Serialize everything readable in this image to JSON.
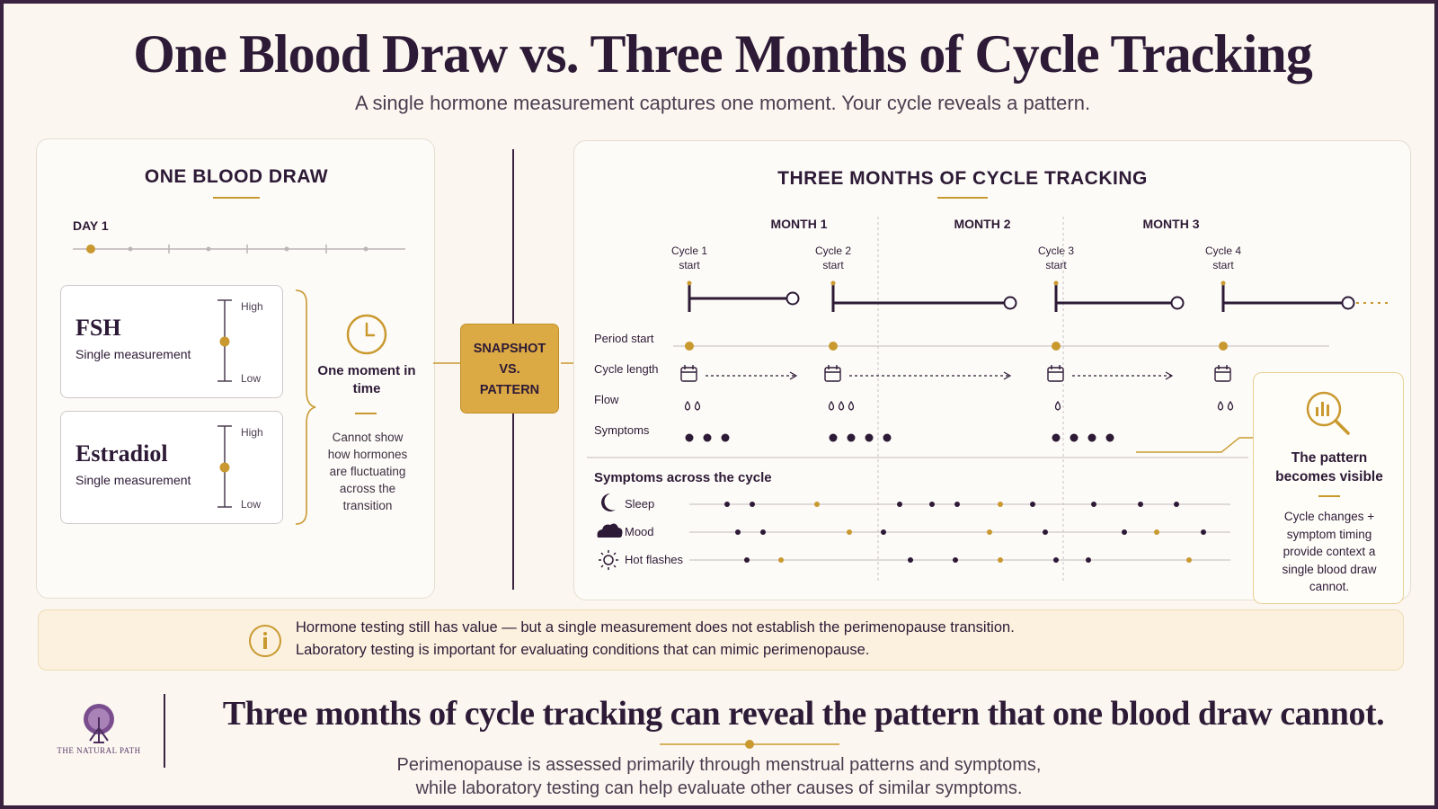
{
  "title": "One Blood Draw vs. Three Months of Cycle Tracking",
  "subtitle": "A single hormone measurement captures one moment. Your cycle reveals a pattern.",
  "left_panel": {
    "title": "ONE BLOOD DRAW",
    "day_label": "DAY 1",
    "cards": [
      {
        "name": "FSH",
        "sub": "Single measurement",
        "high": "High",
        "low": "Low"
      },
      {
        "name": "Estradiol",
        "sub": "Single measurement",
        "high": "High",
        "low": "Low"
      }
    ],
    "moment_label": "One moment in time",
    "cannot_text": "Cannot show how hormones are fluctuating across the transition"
  },
  "center_badge": {
    "line1": "SNAPSHOT",
    "line2": "VS.",
    "line3": "PATTERN"
  },
  "right_panel": {
    "title": "THREE MONTHS OF CYCLE TRACKING",
    "months": [
      "MONTH 1",
      "MONTH 2",
      "MONTH 3"
    ],
    "cycles": [
      {
        "label": "Cycle 1",
        "sub": "start"
      },
      {
        "label": "Cycle 2",
        "sub": "start"
      },
      {
        "label": "Cycle 3",
        "sub": "start"
      },
      {
        "label": "Cycle 4",
        "sub": "start"
      }
    ],
    "rows": [
      "Period start",
      "Cycle length",
      "Flow",
      "Symptoms"
    ],
    "symptoms_heading": "Symptoms across the cycle",
    "symptom_rows": [
      "Sleep",
      "Mood",
      "Hot flashes"
    ]
  },
  "pattern_callout": {
    "title": "The pattern becomes visible",
    "body": "Cycle changes + symptom timing provide context a single blood draw cannot."
  },
  "info_box": {
    "line1": "Hormone testing still has value — but a single measurement does not establish the perimenopause transition.",
    "line2": "Laboratory testing is important for evaluating conditions that can mimic perimenopause."
  },
  "footer": {
    "headline": "Three months of cycle tracking can reveal the pattern that one blood draw cannot.",
    "line1": "Perimenopause is assessed primarily through menstrual patterns and symptoms,",
    "line2": "while laboratory testing can help evaluate other causes of similar symptoms.",
    "logo_text": "THE NATURAL PATH"
  },
  "colors": {
    "gold": "#c9992f",
    "plum": "#2d1a36",
    "badge": "#dcaa45"
  },
  "icons": [
    "clock-icon",
    "calendar-icon",
    "drop-icon",
    "moon-icon",
    "cloud-icon",
    "sun-icon",
    "magnifier-chart-icon",
    "info-icon",
    "tree-logo-icon"
  ]
}
